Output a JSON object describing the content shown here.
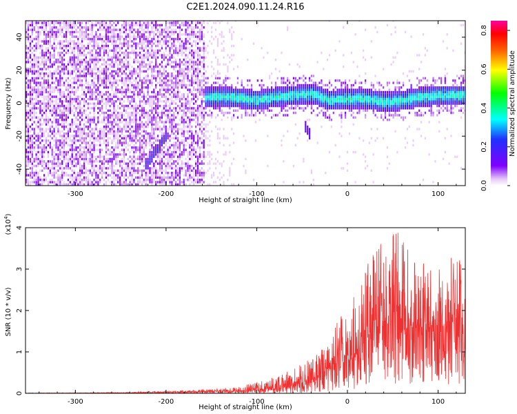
{
  "figure": {
    "title": "C2E1.2024.090.11.24.R16"
  },
  "chart_data": [
    {
      "type": "heatmap",
      "xlabel": "Height of straight line (km)",
      "ylabel": "Frequency (Hz)",
      "xlim": [
        -355,
        130
      ],
      "ylim": [
        -50,
        50
      ],
      "xticks": [
        -300,
        -200,
        -100,
        0,
        100
      ],
      "yticks": [
        -40,
        -20,
        0,
        20,
        40
      ],
      "colorbar": {
        "label": "Normalized spectral amplitude",
        "range": [
          0.0,
          0.85
        ],
        "ticks": [
          "0.0",
          "0.2",
          "0.4",
          "0.6",
          "0.8"
        ],
        "colormap": [
          "#ffffff",
          "#e6c8f8",
          "#8000ff",
          "#2030ff",
          "#00ffff",
          "#00ff00",
          "#ffff00",
          "#ff6000",
          "#ff0000",
          "#ff00a0"
        ]
      },
      "regions": [
        {
          "x": [
            -355,
            -158
          ],
          "freq_range": [
            -50,
            50
          ],
          "amplitude_range": [
            0.02,
            0.12
          ],
          "texture": "noise"
        },
        {
          "x": [
            -155,
            130
          ],
          "freq_range": [
            -8,
            10
          ],
          "amplitude_range": [
            0.1,
            0.5
          ],
          "texture": "signal band"
        }
      ],
      "ridge": {
        "x": [
          -155,
          -130,
          -100,
          -80,
          -60,
          -40,
          -20,
          0,
          20,
          40,
          60,
          80,
          100,
          130
        ],
        "freq_hz": [
          3,
          3,
          1,
          3,
          4,
          5,
          1,
          2,
          2,
          0,
          1,
          3,
          4,
          4
        ]
      },
      "features": [
        {
          "x": [
            -225,
            -200
          ],
          "freq_hz": [
            -40,
            -20
          ],
          "amplitude": 0.15
        },
        {
          "x": [
            -48,
            -42
          ],
          "freq_hz": [
            -14,
            -20
          ],
          "amplitude": 0.12
        }
      ]
    },
    {
      "type": "line",
      "xlabel": "Height of straight line (km)",
      "ylabel": "SNR (10 * v/v)",
      "y_multiplier": "(x10",
      "y_multiplier_exp": "4",
      "y_multiplier_close": ")",
      "xlim": [
        -355,
        130
      ],
      "ylim": [
        0,
        4
      ],
      "xticks": [
        -300,
        -200,
        -100,
        0,
        100
      ],
      "yticks": [
        0,
        1,
        2,
        3,
        4
      ],
      "color": "#f03030",
      "series": [
        {
          "x": [
            -355,
            -250,
            -150,
            -120,
            -100,
            -80,
            -60,
            -40,
            -20,
            -10,
            0,
            10,
            20,
            30,
            40,
            50,
            60,
            70,
            80,
            90,
            100,
            110,
            120,
            130
          ],
          "y_mean": [
            0.0,
            0.01,
            0.04,
            0.06,
            0.08,
            0.12,
            0.18,
            0.35,
            0.55,
            0.75,
            0.8,
            1.0,
            1.3,
            1.5,
            1.7,
            1.8,
            1.8,
            1.7,
            1.6,
            1.6,
            1.6,
            1.6,
            1.7,
            1.6
          ],
          "y_max": [
            0.01,
            0.02,
            0.1,
            0.15,
            0.28,
            0.4,
            0.6,
            0.9,
            1.2,
            1.8,
            2.0,
            2.5,
            3.0,
            3.5,
            3.7,
            4.0,
            3.9,
            3.4,
            3.2,
            3.1,
            3.2,
            3.3,
            3.5,
            3.3
          ],
          "y_min": [
            0.0,
            0.0,
            0.0,
            0.0,
            0.0,
            0.0,
            0.0,
            0.02,
            0.05,
            0.1,
            0.1,
            0.1,
            0.2,
            0.2,
            0.2,
            0.2,
            0.2,
            0.2,
            0.2,
            0.2,
            0.2,
            0.2,
            0.2,
            0.2
          ]
        }
      ]
    }
  ]
}
